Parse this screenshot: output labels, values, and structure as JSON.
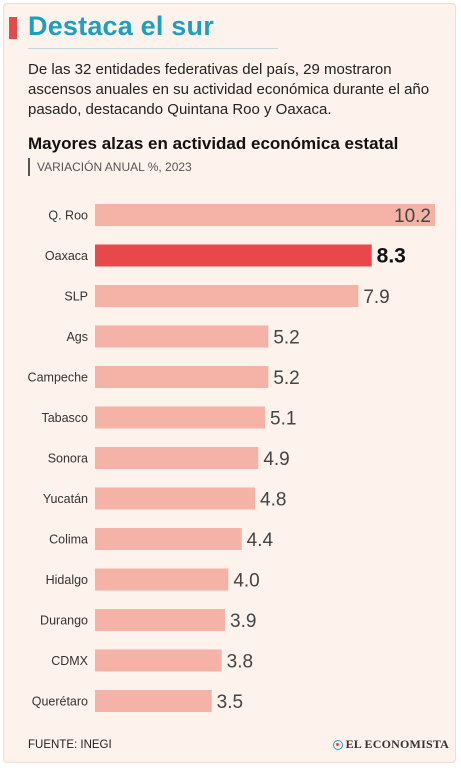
{
  "header": {
    "title": "Destaca el sur",
    "intro": "De las 32 entidades federativas del país, 29 mostraron ascensos anuales en su actividad económica durante el año pasado, destacando Quintana Roo y Oaxaca."
  },
  "chart_data": {
    "type": "bar",
    "orientation": "horizontal",
    "title": "Mayores alzas en actividad económica estatal",
    "subtitle": "VARIACIÓN ANUAL %, 2023",
    "categories": [
      "Q. Roo",
      "Oaxaca",
      "SLP",
      "Ags",
      "Campeche",
      "Tabasco",
      "Sonora",
      "Yucatán",
      "Colima",
      "Hidalgo",
      "Durango",
      "CDMX",
      "Querétaro"
    ],
    "values": [
      10.2,
      8.3,
      7.9,
      5.2,
      5.2,
      5.1,
      4.9,
      4.8,
      4.4,
      4.0,
      3.9,
      3.8,
      3.5
    ],
    "value_labels": [
      "10.2",
      "8.3",
      "7.9",
      "5.2",
      "5.2",
      "5.1",
      "4.9",
      "4.8",
      "4.4",
      "4.0",
      "3.9",
      "3.8",
      "3.5"
    ],
    "highlight": "Oaxaca",
    "xlim": [
      0,
      10.2
    ],
    "grid": false,
    "legend": "none",
    "colors": {
      "bar": "#f4b3a6",
      "highlight": "#e8484a"
    }
  },
  "footer": {
    "source": "FUENTE: INEGI",
    "brand": "EL ECONOMISTA"
  }
}
